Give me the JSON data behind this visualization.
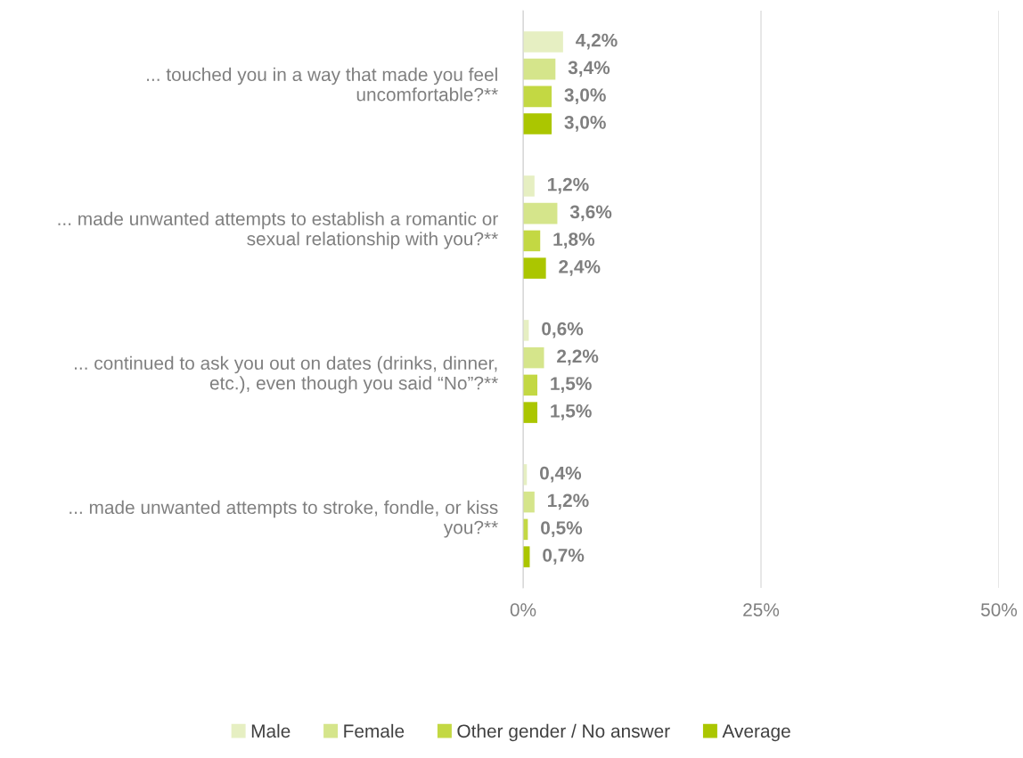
{
  "chart_data": {
    "type": "bar",
    "orientation": "horizontal",
    "categories": [
      "... touched you in a way that made you feel\nuncomfortable?**",
      "... made unwanted attempts to establish a romantic or\nsexual relationship with you?**",
      "... continued to ask you out on dates (drinks, dinner,\netc.), even though you said “No”?**",
      "... made unwanted attempts to stroke, fondle, or kiss\nyou?**"
    ],
    "series": [
      {
        "name": "Male",
        "color": "#e6efc2",
        "values": [
          4.2,
          1.2,
          0.6,
          0.4
        ],
        "value_labels": [
          "4,2%",
          "1,2%",
          "0,6%",
          "0,4%"
        ]
      },
      {
        "name": "Female",
        "color": "#d5e58b",
        "values": [
          3.4,
          3.6,
          2.2,
          1.2
        ],
        "value_labels": [
          "3,4%",
          "3,6%",
          "2,2%",
          "1,2%"
        ]
      },
      {
        "name": "Other gender / No answer",
        "color": "#c3d843",
        "values": [
          3.0,
          1.8,
          1.5,
          0.5
        ],
        "value_labels": [
          "3,0%",
          "1,8%",
          "1,5%",
          "0,5%"
        ]
      },
      {
        "name": "Average",
        "color": "#abc600",
        "values": [
          3.0,
          2.4,
          1.5,
          0.7
        ],
        "value_labels": [
          "3,0%",
          "2,4%",
          "1,5%",
          "0,7%"
        ]
      }
    ],
    "xlim": [
      0,
      50
    ],
    "xticks": [
      {
        "value": 0,
        "label": "0%"
      },
      {
        "value": 25,
        "label": "25%"
      },
      {
        "value": 50,
        "label": "50%"
      }
    ],
    "grid": "x",
    "legend": "bottom"
  }
}
